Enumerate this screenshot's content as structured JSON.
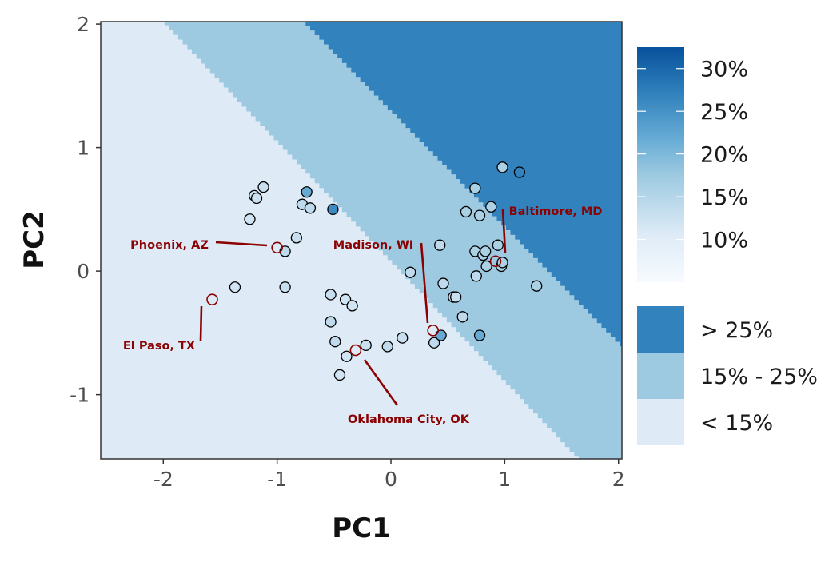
{
  "chart_data": {
    "type": "scatter",
    "xlabel": "PC1",
    "ylabel": "PC2",
    "xlim": [
      -2.55,
      2.03
    ],
    "ylim": [
      -1.52,
      2.02
    ],
    "x_ticks": [
      -2,
      -1,
      0,
      1,
      2
    ],
    "y_ticks": [
      -1,
      0,
      1,
      2
    ],
    "x_tick_labels": [
      "-2",
      "-1",
      "0",
      "1",
      "2"
    ],
    "y_tick_labels": [
      "-1",
      "0",
      "1",
      "2"
    ],
    "background_bands": {
      "description_colors": [
        "#deebf7",
        "#9ecae1",
        "#3182bd"
      ],
      "labels": [
        "< 15%",
        "15% - 25%",
        "> 25%"
      ]
    },
    "continuous_legend": {
      "tick_labels": [
        "30%",
        "25%",
        "20%",
        "15%",
        "10%"
      ],
      "tick_values": [
        30,
        25,
        20,
        15,
        10
      ],
      "range": [
        5,
        32.5
      ],
      "colors": [
        "#f7fbff",
        "#deebf7",
        "#9ecae1",
        "#6baed6",
        "#3182bd",
        "#08519c"
      ]
    },
    "discrete_legend": {
      "labels": [
        "> 25%",
        "15% - 25%",
        "< 15%"
      ],
      "colors": [
        "#3182bd",
        "#9ecae1",
        "#deebf7"
      ]
    },
    "points": [
      {
        "x": -1.2,
        "y": 0.61,
        "v": 12.5
      },
      {
        "x": -1.18,
        "y": 0.59,
        "v": 12.5
      },
      {
        "x": -1.12,
        "y": 0.68,
        "v": 13
      },
      {
        "x": -1.24,
        "y": 0.42,
        "v": 12
      },
      {
        "x": -0.74,
        "y": 0.64,
        "v": 22
      },
      {
        "x": -0.78,
        "y": 0.54,
        "v": 14
      },
      {
        "x": -0.71,
        "y": 0.51,
        "v": 14
      },
      {
        "x": -0.51,
        "y": 0.5,
        "v": 26
      },
      {
        "x": -0.83,
        "y": 0.27,
        "v": 13
      },
      {
        "x": -0.93,
        "y": 0.16,
        "v": 14
      },
      {
        "x": -1.37,
        "y": -0.13,
        "v": 12
      },
      {
        "x": -0.93,
        "y": -0.13,
        "v": 13
      },
      {
        "x": -0.53,
        "y": -0.19,
        "v": 13
      },
      {
        "x": -0.4,
        "y": -0.23,
        "v": 12
      },
      {
        "x": -0.34,
        "y": -0.28,
        "v": 12
      },
      {
        "x": -0.53,
        "y": -0.41,
        "v": 14
      },
      {
        "x": -0.49,
        "y": -0.57,
        "v": 14
      },
      {
        "x": -0.39,
        "y": -0.69,
        "v": 12
      },
      {
        "x": -0.22,
        "y": -0.6,
        "v": 13
      },
      {
        "x": -0.45,
        "y": -0.84,
        "v": 12
      },
      {
        "x": -0.03,
        "y": -0.61,
        "v": 14
      },
      {
        "x": 0.1,
        "y": -0.54,
        "v": 13
      },
      {
        "x": 0.17,
        "y": -0.01,
        "v": 14
      },
      {
        "x": 0.38,
        "y": -0.58,
        "v": 14
      },
      {
        "x": 0.44,
        "y": -0.52,
        "v": 22
      },
      {
        "x": 0.46,
        "y": -0.1,
        "v": 14
      },
      {
        "x": 0.43,
        "y": 0.21,
        "v": 14
      },
      {
        "x": 0.55,
        "y": -0.21,
        "v": 13
      },
      {
        "x": 0.57,
        "y": -0.21,
        "v": 13
      },
      {
        "x": 0.63,
        "y": -0.37,
        "v": 14
      },
      {
        "x": 0.78,
        "y": -0.52,
        "v": 22
      },
      {
        "x": 0.75,
        "y": -0.04,
        "v": 14
      },
      {
        "x": 0.66,
        "y": 0.48,
        "v": 16
      },
      {
        "x": 0.74,
        "y": 0.67,
        "v": 16
      },
      {
        "x": 0.78,
        "y": 0.45,
        "v": 16
      },
      {
        "x": 0.88,
        "y": 0.52,
        "v": 16
      },
      {
        "x": 0.74,
        "y": 0.16,
        "v": 16
      },
      {
        "x": 0.81,
        "y": 0.13,
        "v": 16
      },
      {
        "x": 0.83,
        "y": 0.16,
        "v": 16
      },
      {
        "x": 0.84,
        "y": 0.04,
        "v": 16
      },
      {
        "x": 0.94,
        "y": 0.21,
        "v": 16
      },
      {
        "x": 0.97,
        "y": 0.04,
        "v": 16
      },
      {
        "x": 0.98,
        "y": 0.07,
        "v": 16
      },
      {
        "x": 0.98,
        "y": 0.84,
        "v": 16
      },
      {
        "x": 1.13,
        "y": 0.8,
        "v": 27
      },
      {
        "x": 1.28,
        "y": -0.12,
        "v": 16
      }
    ],
    "labeled_cities": [
      {
        "name": "Phoenix, AZ",
        "x": -1.0,
        "y": 0.19
      },
      {
        "name": "El Paso, TX",
        "x": -1.57,
        "y": -0.23
      },
      {
        "name": "Madison, WI",
        "x": 0.37,
        "y": -0.48
      },
      {
        "name": "Baltimore, MD",
        "x": 0.92,
        "y": 0.08
      },
      {
        "name": "Oklahoma City, OK",
        "x": -0.31,
        "y": -0.64
      }
    ]
  }
}
